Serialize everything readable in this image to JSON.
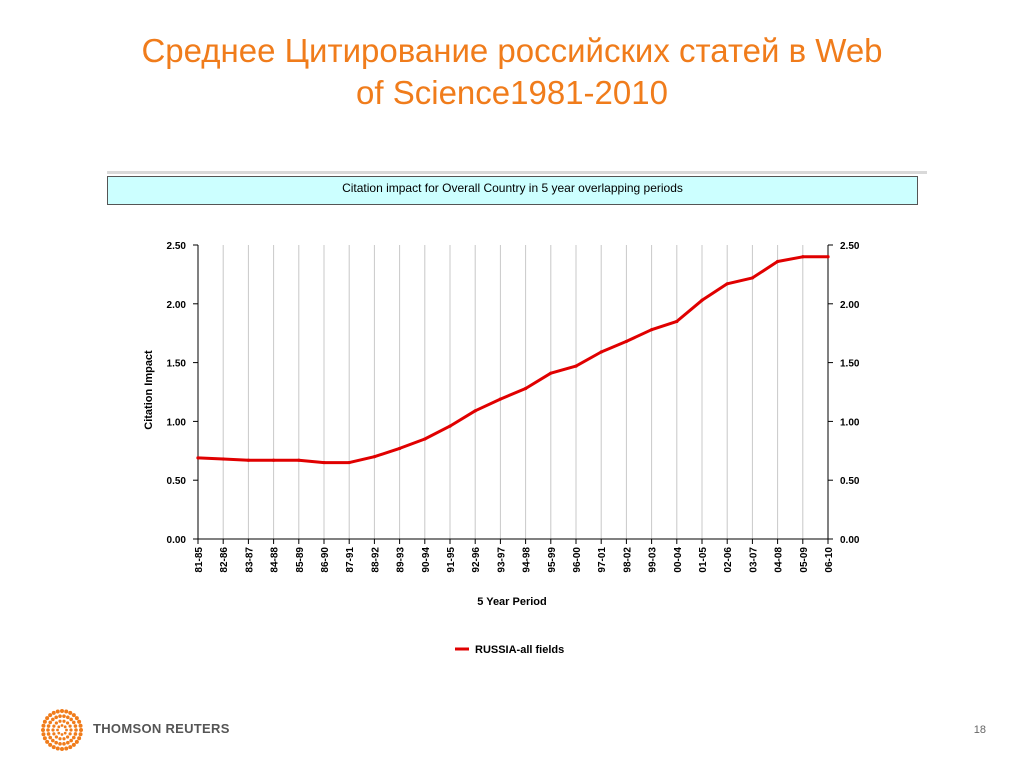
{
  "slide": {
    "title_line1": "Среднее Цитирование российских статей в Web",
    "title_line2": "of Science1981-2010",
    "page_number": "18"
  },
  "footer": {
    "brand": "THOMSON REUTERS"
  },
  "colors": {
    "title": "#f07c1b",
    "series": "#e00000",
    "header_bg": "#ccffff",
    "logo": "#f07c1b"
  },
  "chart_data": {
    "type": "line",
    "title": "Citation impact for Overall Country in 5 year overlapping periods",
    "xlabel": "5 Year Period",
    "ylabel": "Citation Impact",
    "categories": [
      "81-85",
      "82-86",
      "83-87",
      "84-88",
      "85-89",
      "86-90",
      "87-91",
      "88-92",
      "89-93",
      "90-94",
      "91-95",
      "92-96",
      "93-97",
      "94-98",
      "95-99",
      "96-00",
      "97-01",
      "98-02",
      "99-03",
      "00-04",
      "01-05",
      "02-06",
      "03-07",
      "04-08",
      "05-09",
      "06-10"
    ],
    "series": [
      {
        "name": "RUSSIA-all fields",
        "values": [
          0.69,
          0.68,
          0.67,
          0.67,
          0.67,
          0.65,
          0.65,
          0.7,
          0.77,
          0.85,
          0.96,
          1.09,
          1.19,
          1.28,
          1.41,
          1.47,
          1.59,
          1.68,
          1.78,
          1.85,
          2.03,
          2.17,
          2.22,
          2.36,
          2.4,
          2.4
        ]
      }
    ],
    "yticks": [
      "0.00",
      "0.50",
      "1.00",
      "1.50",
      "2.00",
      "2.50"
    ],
    "ylim": [
      0,
      2.5
    ],
    "grid": true,
    "secondary_y_axis": true,
    "legend_position": "bottom-center"
  }
}
